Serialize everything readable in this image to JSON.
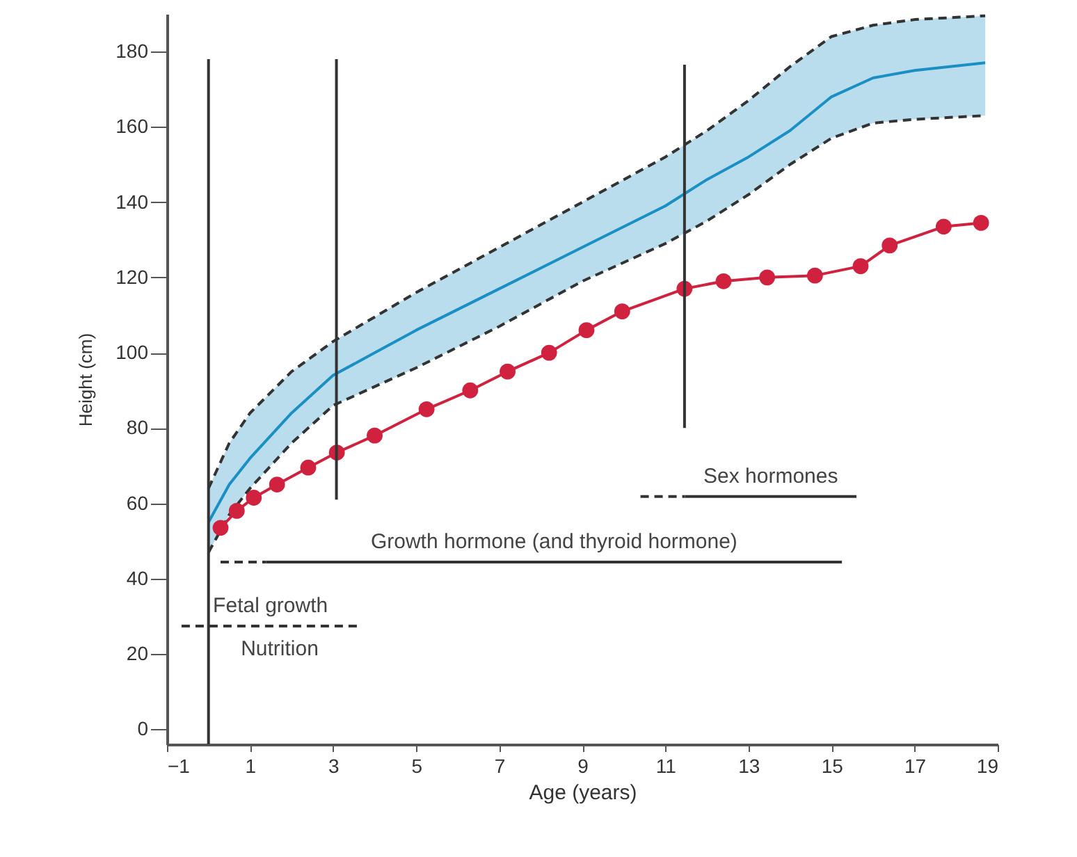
{
  "chart_data": {
    "type": "line",
    "xlabel": "Age (years)",
    "ylabel": "Height (cm)",
    "xlim": [
      -1,
      19
    ],
    "xticks": [
      {
        "value": -1,
        "label": "−1"
      },
      1,
      3,
      5,
      7,
      9,
      11,
      13,
      15,
      17,
      19
    ],
    "ylim": [
      -4,
      190
    ],
    "yticks": [
      0,
      20,
      40,
      60,
      80,
      100,
      120,
      140,
      160,
      180
    ],
    "grid": false,
    "series": [
      {
        "color": "#1a8fc4",
        "line_style": "solid",
        "marker": "none",
        "x": [
          0,
          0.5,
          1,
          2,
          3,
          5,
          7,
          9,
          11,
          12,
          13,
          14,
          15,
          16,
          17,
          18.7
        ],
        "values": [
          55,
          65,
          72,
          84,
          94,
          106,
          117,
          128,
          139,
          146,
          152,
          159,
          168,
          173,
          175,
          177
        ],
        "upper": [
          64,
          76,
          84,
          95,
          103,
          116,
          128,
          140,
          152,
          159,
          167,
          176,
          184,
          187,
          188.5,
          189.5
        ],
        "lower": [
          47,
          57,
          64,
          76,
          86,
          96,
          107,
          119,
          129,
          135,
          142,
          150,
          157,
          161,
          162,
          163
        ]
      },
      {
        "color": "#333333",
        "line_style": "dashed",
        "marker": "none",
        "x": [
          0,
          0.5,
          1,
          2,
          3,
          5,
          7,
          9,
          11,
          12,
          13,
          14,
          15,
          16,
          17,
          18.7
        ],
        "values": [
          64,
          76,
          84,
          95,
          103,
          116,
          128,
          140,
          152,
          159,
          167,
          176,
          184,
          187,
          188.5,
          189.5
        ]
      },
      {
        "color": "#333333",
        "line_style": "dashed",
        "marker": "none",
        "x": [
          0,
          0.5,
          1,
          2,
          3,
          5,
          7,
          9,
          11,
          12,
          13,
          14,
          15,
          16,
          17,
          18.7
        ],
        "values": [
          47,
          57,
          64,
          76,
          86,
          96,
          107,
          119,
          129,
          135,
          142,
          150,
          157,
          161,
          162,
          163
        ]
      },
      {
        "color": "#d0223f",
        "line_style": "solid",
        "marker": "circle",
        "x": [
          0.29,
          0.68,
          1.09,
          1.65,
          2.4,
          3.09,
          4.0,
          5.25,
          6.3,
          7.2,
          8.2,
          9.1,
          9.96,
          11.46,
          12.4,
          13.45,
          14.6,
          15.7,
          16.4,
          17.7,
          18.6
        ],
        "values": [
          53.5,
          58,
          61.5,
          65,
          69.5,
          73.5,
          78,
          85,
          90,
          95,
          100,
          106,
          111,
          117,
          119,
          120,
          120.5,
          123,
          128.5,
          133.5,
          134.5
        ]
      },
      {
        "color": "#333333",
        "line_style": "solid",
        "marker": "none",
        "x": [
          0,
          0
        ],
        "values": [
          178,
          -4
        ]
      },
      {
        "color": "#333333",
        "line_style": "solid",
        "marker": "none",
        "x": [
          3.08,
          3.08
        ],
        "values": [
          178,
          61
        ]
      },
      {
        "color": "#333333",
        "line_style": "solid",
        "marker": "none",
        "x": [
          11.46,
          11.46
        ],
        "values": [
          176.5,
          80
        ]
      },
      {
        "color": "#333333",
        "line_style": "dashed",
        "marker": "none",
        "x": [
          0.29,
          1.39
        ],
        "values": [
          44.4,
          44.4
        ]
      },
      {
        "name": "Growth hormone (and thyroid hormone)",
        "color": "#333333",
        "line_style": "solid",
        "marker": "none",
        "x": [
          1.39,
          15.25
        ],
        "values": [
          44.4,
          44.4
        ]
      },
      {
        "color": "#333333",
        "line_style": "dashed",
        "marker": "none",
        "x": [
          10.4,
          11.47
        ],
        "values": [
          61.8,
          61.8
        ]
      },
      {
        "name": "Sex hormones",
        "color": "#333333",
        "line_style": "solid",
        "marker": "none",
        "x": [
          11.47,
          15.6
        ],
        "values": [
          61.8,
          61.8
        ]
      },
      {
        "name": "Fetal growth",
        "color": "#333333",
        "line_style": "dashed",
        "marker": "none",
        "x": [
          -0.65,
          3.63
        ],
        "values": [
          27.4,
          27.4
        ]
      }
    ],
    "annotations": [
      "Nutrition"
    ]
  }
}
